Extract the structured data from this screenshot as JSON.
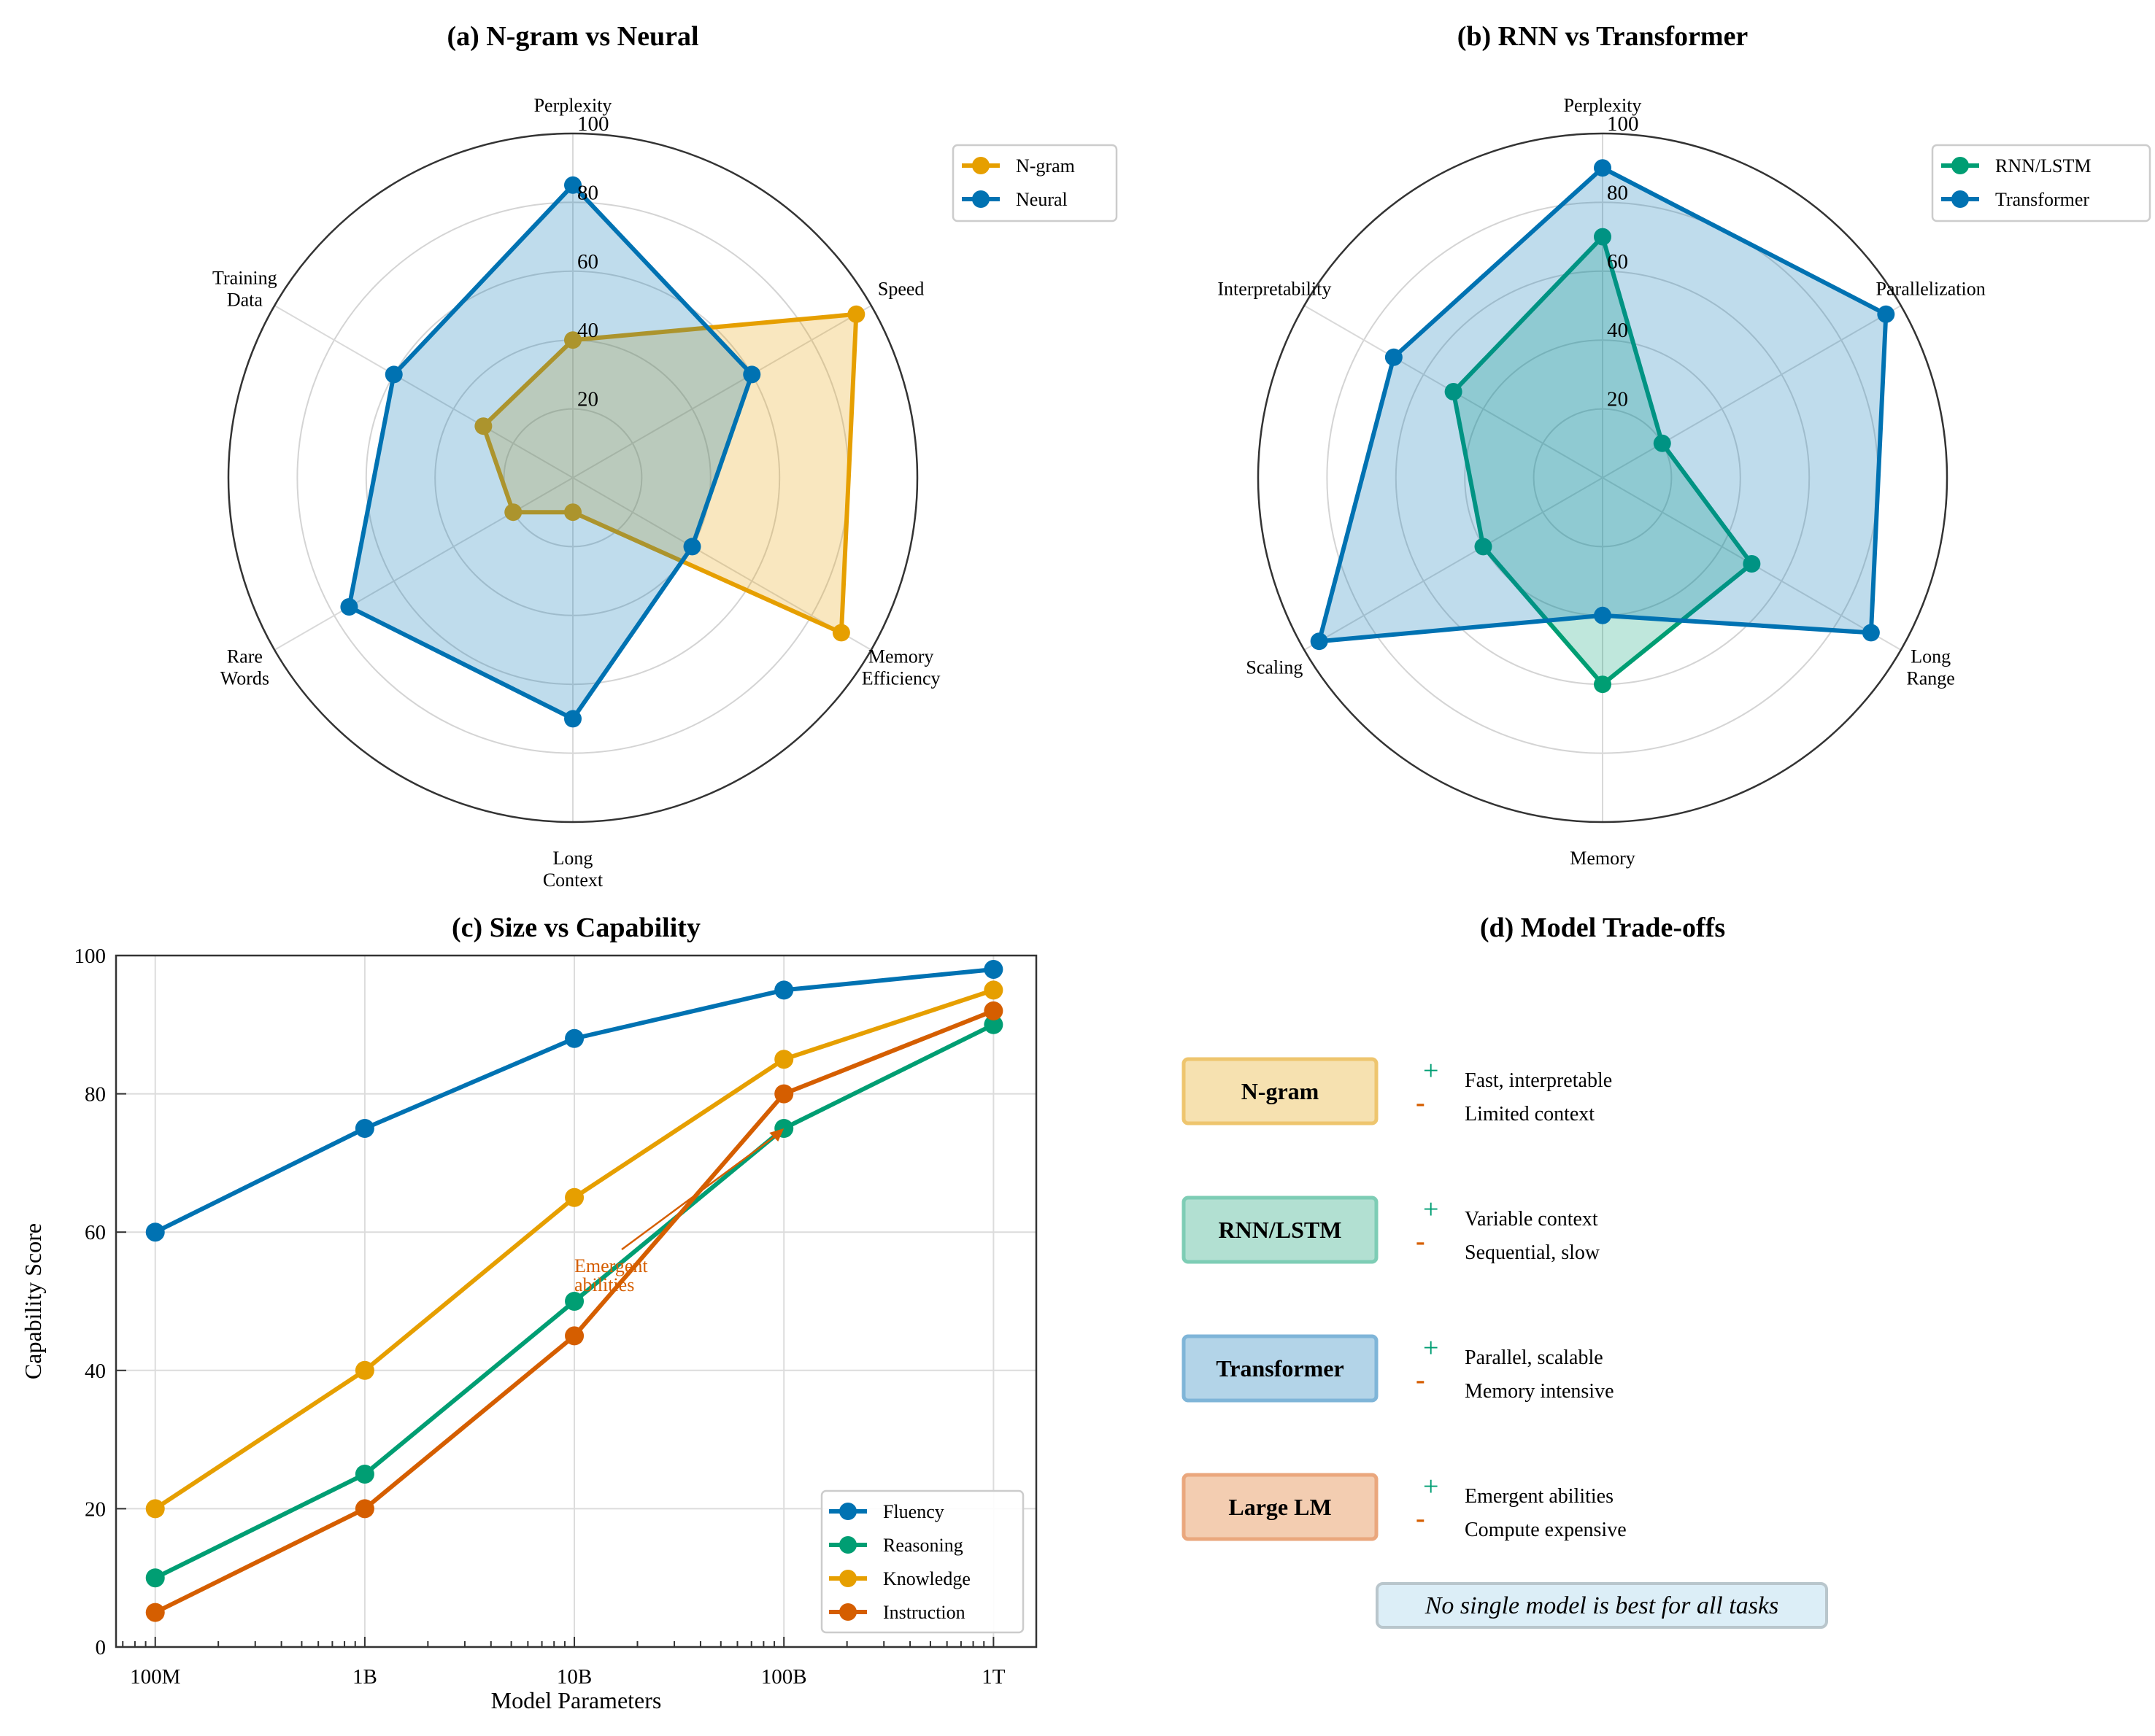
{
  "colors": {
    "orange": "#E69F00",
    "blue": "#0072B2",
    "green": "#009E73",
    "vermillion": "#D55E00"
  },
  "chart_data": [
    {
      "type": "radar",
      "title": "(a) N-gram vs Neural",
      "axes": [
        [
          "Perplexity"
        ],
        [
          "Speed"
        ],
        [
          "Memory",
          "Efficiency"
        ],
        [
          "Long",
          "Context"
        ],
        [
          "Rare",
          "Words"
        ],
        [
          "Training",
          "Data"
        ]
      ],
      "rlim": [
        0,
        100
      ],
      "rticks": [
        "20",
        "40",
        "60",
        "80",
        "100"
      ],
      "legend_position": "upper-right",
      "series": [
        {
          "name": "N-gram",
          "color": "#E69F00",
          "values": [
            40,
            95,
            90,
            10,
            20,
            30
          ]
        },
        {
          "name": "Neural",
          "color": "#0072B2",
          "values": [
            85,
            60,
            40,
            70,
            75,
            60
          ]
        }
      ]
    },
    {
      "type": "radar",
      "title": "(b) RNN vs Transformer",
      "axes": [
        [
          "Perplexity"
        ],
        [
          "Parallelization"
        ],
        [
          "Long",
          "Range"
        ],
        [
          "Memory"
        ],
        [
          "Scaling"
        ],
        [
          "Interpretability"
        ]
      ],
      "rlim": [
        0,
        100
      ],
      "rticks": [
        "20",
        "40",
        "60",
        "80",
        "100"
      ],
      "legend_position": "upper-right",
      "series": [
        {
          "name": "RNN/LSTM",
          "color": "#009E73",
          "values": [
            70,
            20,
            50,
            60,
            40,
            50
          ]
        },
        {
          "name": "Transformer",
          "color": "#0072B2",
          "values": [
            90,
            95,
            90,
            40,
            95,
            70
          ]
        }
      ]
    },
    {
      "type": "line",
      "title": "(c) Size vs Capability",
      "xlabel": "Model Parameters",
      "ylabel": "Capability Score",
      "xscale": "log",
      "x": [
        100000000.0,
        1000000000.0,
        10000000000.0,
        100000000000.0,
        1000000000000.0
      ],
      "xticklabels": [
        "100M",
        "1B",
        "10B",
        "100B",
        "1T"
      ],
      "xlim": [
        65000000.0,
        1600000000000.0
      ],
      "ylim": [
        0,
        100
      ],
      "yticks": [
        "0",
        "20",
        "40",
        "60",
        "80",
        "100"
      ],
      "grid": true,
      "legend_position": "lower-right",
      "series": [
        {
          "name": "Fluency",
          "color": "#0072B2",
          "values": [
            60,
            75,
            88,
            95,
            98
          ]
        },
        {
          "name": "Reasoning",
          "color": "#009E73",
          "values": [
            10,
            25,
            50,
            75,
            90
          ]
        },
        {
          "name": "Knowledge",
          "color": "#E69F00",
          "values": [
            20,
            40,
            65,
            85,
            95
          ]
        },
        {
          "name": "Instruction",
          "color": "#D55E00",
          "values": [
            5,
            20,
            45,
            80,
            92
          ]
        }
      ],
      "annotation": {
        "lines": [
          "Emergent",
          "abilities"
        ],
        "color": "#D55E00",
        "arrow_to": [
          100000000000.0,
          75
        ]
      }
    }
  ],
  "tradeoffs": {
    "title": "(d) Model Trade-offs",
    "plus_symbol": "+",
    "minus_symbol": "-",
    "models": [
      {
        "name": "N-gram",
        "fill": "#F6E1B0",
        "stroke": "#EEC56E",
        "pro": "Fast, interpretable",
        "con": "Limited context"
      },
      {
        "name": "RNN/LSTM",
        "fill": "#B2E0D2",
        "stroke": "#7ECDB5",
        "pro": "Variable context",
        "con": "Sequential, slow"
      },
      {
        "name": "Transformer",
        "fill": "#B3D4E8",
        "stroke": "#7FB5D8",
        "pro": "Parallel, scalable",
        "con": "Memory intensive"
      },
      {
        "name": "Large LM",
        "fill": "#F3CDB1",
        "stroke": "#EAA77D",
        "pro": "Emergent abilities",
        "con": "Compute expensive"
      }
    ],
    "note": "No single model is best for all tasks"
  }
}
